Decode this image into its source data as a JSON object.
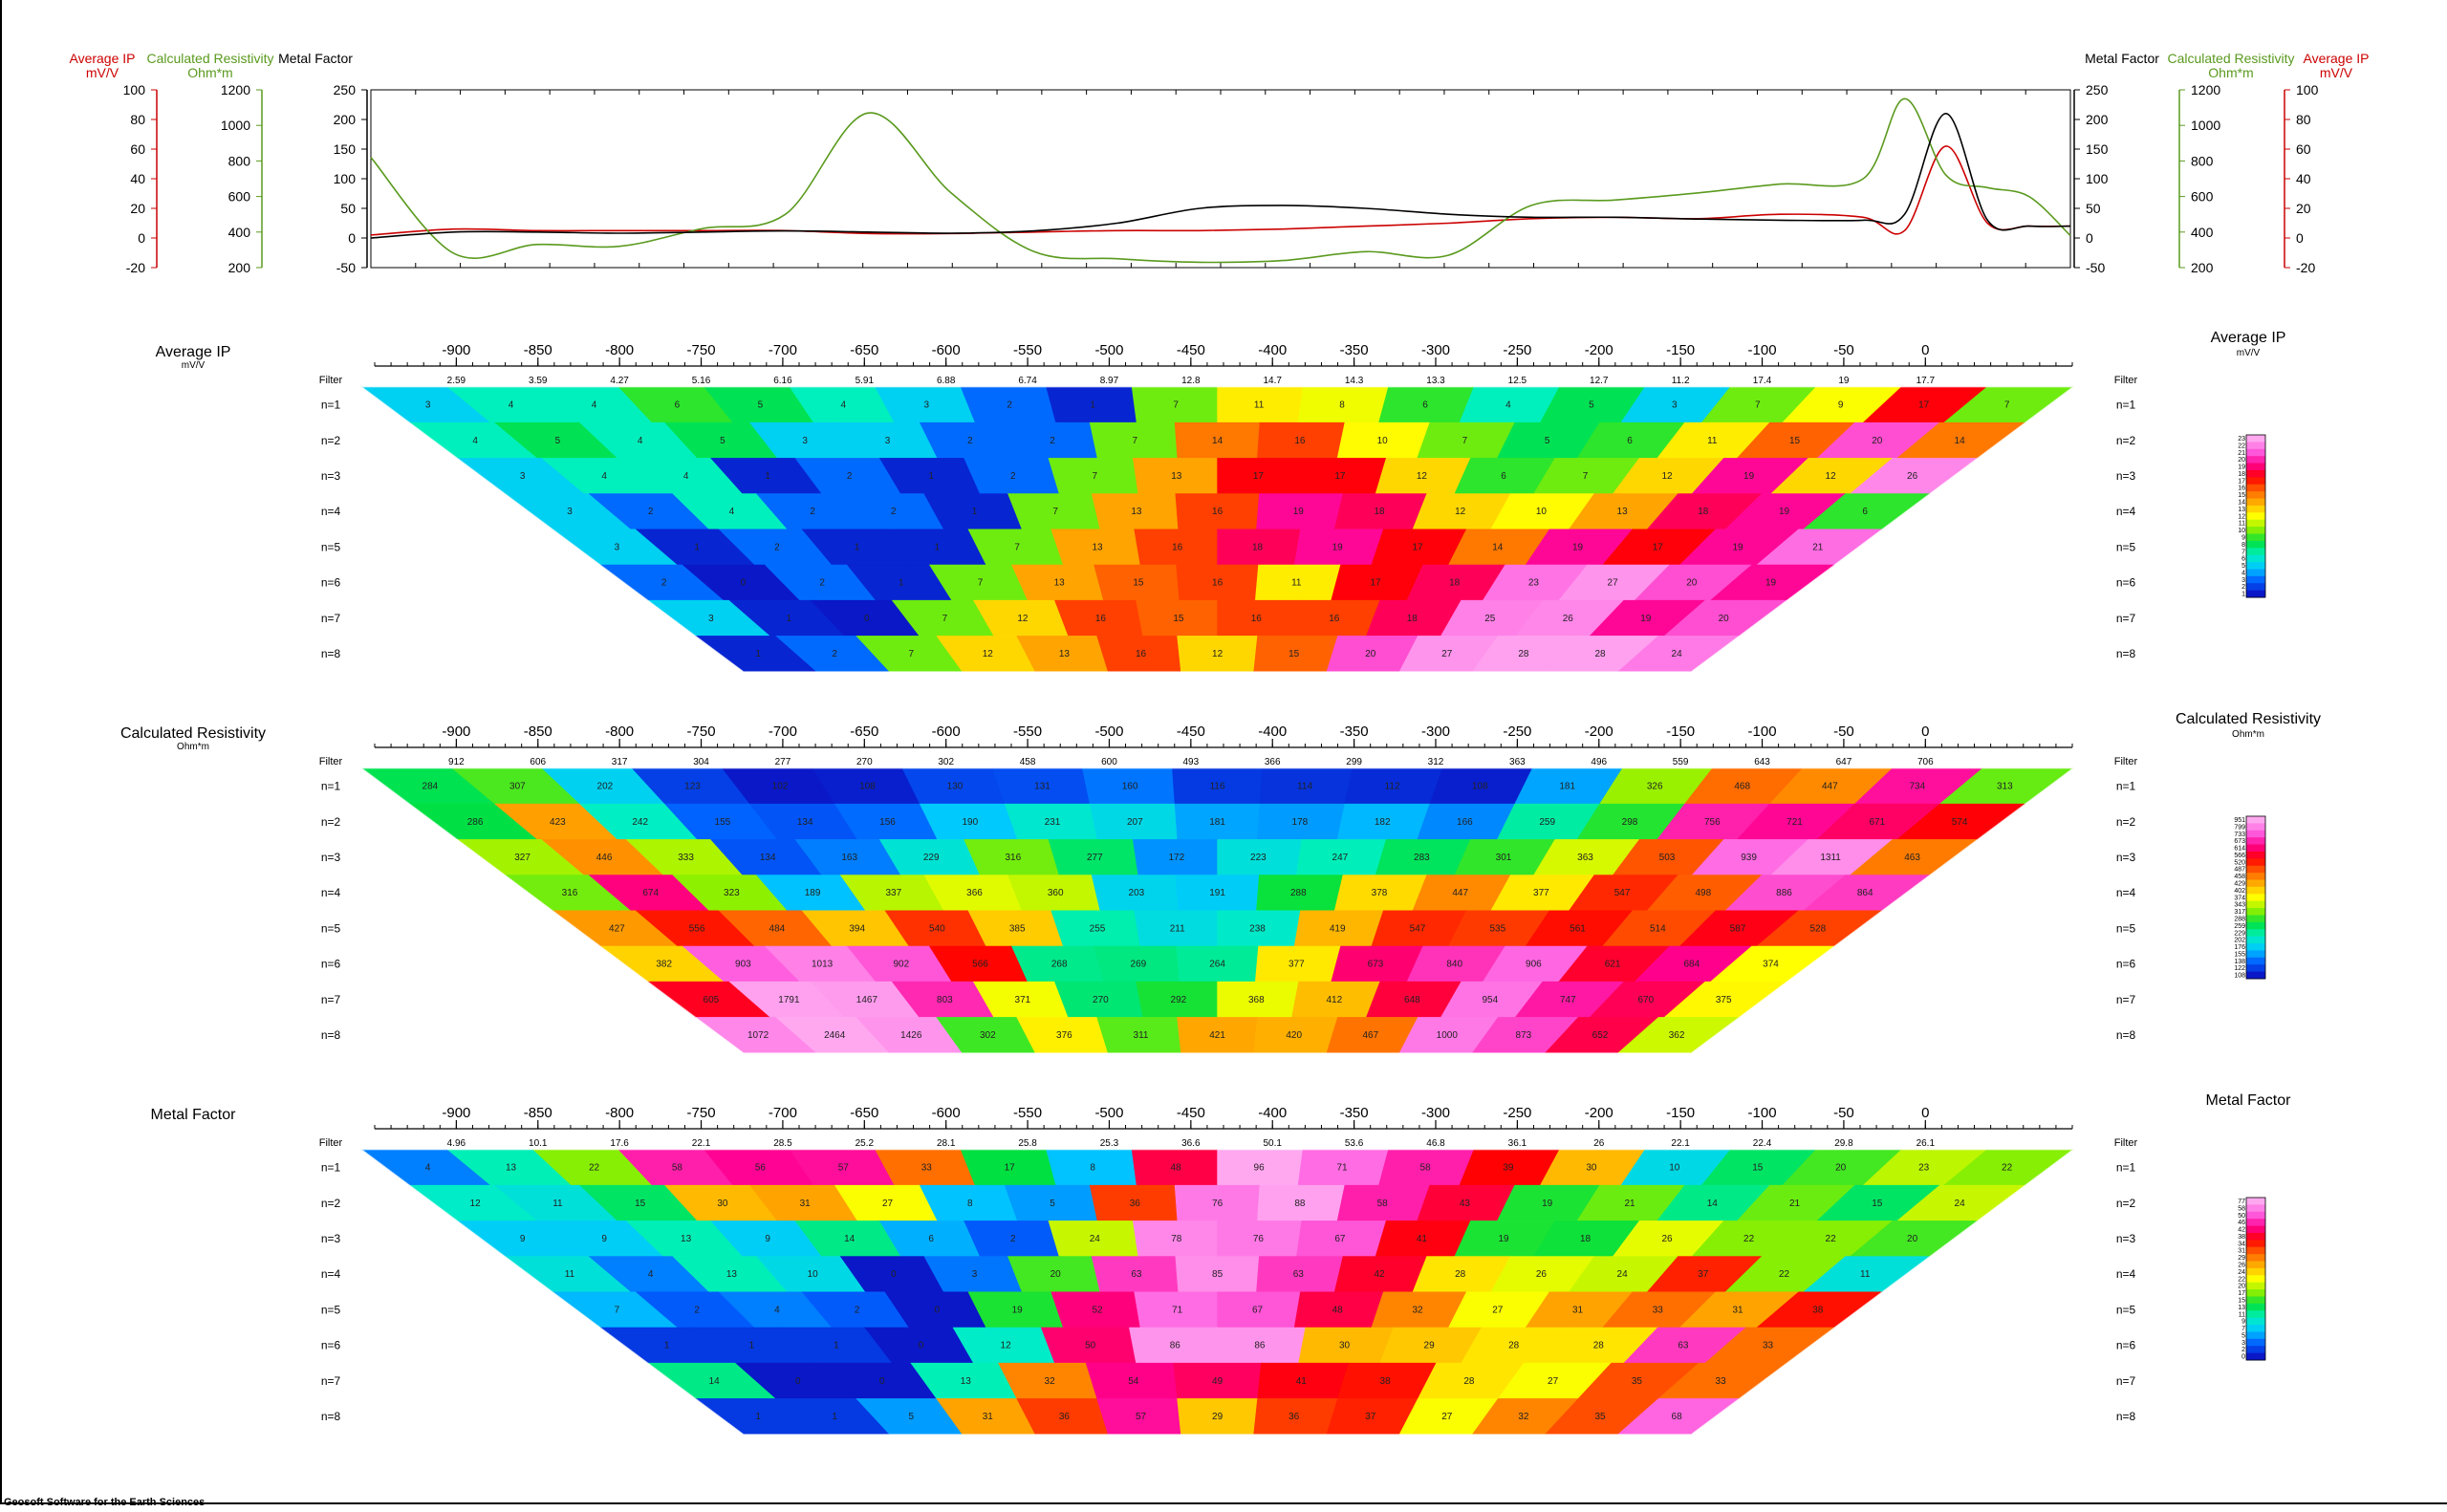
{
  "footer": "Geosoft Software for the Earth Sciences",
  "filter_label": "Filter",
  "levels": [
    "n=1",
    "n=2",
    "n=3",
    "n=4",
    "n=5",
    "n=6",
    "n=7",
    "n=8"
  ],
  "colors": {
    "ip": "#cc0000",
    "resistivity": "#5a9a1e",
    "metal": "#000000",
    "ramp": [
      "#0a18c8",
      "#0060ff",
      "#00c8ff",
      "#00f0c0",
      "#00e040",
      "#90f000",
      "#ffff00",
      "#ffb000",
      "#ff6000",
      "#ff0000",
      "#ff0090",
      "#ff60e0",
      "#ffa8f0"
    ]
  },
  "profile_chart": {
    "left_axes": [
      {
        "title": "Average IP",
        "unit": "mV/V",
        "ticks": [
          "100",
          "80",
          "60",
          "40",
          "20",
          "0",
          "-20"
        ]
      },
      {
        "title": "Calculated Resistivity",
        "unit": "Ohm*m",
        "ticks": [
          "1200",
          "1000",
          "800",
          "600",
          "400",
          "200"
        ]
      },
      {
        "title": "Metal Factor",
        "unit": "",
        "ticks": [
          "250",
          "200",
          "150",
          "100",
          "50",
          "0",
          "-50"
        ]
      }
    ],
    "right_axes": [
      {
        "title": "Metal Factor",
        "unit": "",
        "ticks": [
          "250",
          "200",
          "150",
          "100",
          "50",
          "0",
          "-50"
        ]
      },
      {
        "title": "Calculated Resistivity",
        "unit": "Ohm*m",
        "ticks": [
          "1200",
          "1000",
          "800",
          "600",
          "400",
          "200"
        ]
      },
      {
        "title": "Average IP",
        "unit": "mV/V",
        "ticks": [
          "100",
          "80",
          "60",
          "40",
          "20",
          "0",
          "-20"
        ]
      }
    ]
  },
  "chart_data": [
    {
      "type": "line",
      "x": [
        -1000,
        -950,
        -900,
        -850,
        -800,
        -750,
        -700,
        -650,
        -600,
        -550,
        -500,
        -450,
        -400,
        -350,
        -300,
        -250,
        -200,
        -150,
        -100,
        -75,
        -50,
        -25,
        0,
        25
      ],
      "xlim": [
        -1000,
        25
      ],
      "series": [
        {
          "name": "Average IP",
          "unit": "mV/V",
          "ylim": [
            -20,
            100
          ],
          "values": [
            2,
            6,
            5,
            5,
            5,
            5,
            3,
            3,
            4,
            5,
            5,
            6,
            8,
            10,
            13,
            14,
            13,
            16,
            14,
            5,
            62,
            10,
            8,
            8
          ]
        },
        {
          "name": "Calculated Resistivity",
          "unit": "Ohm*m",
          "ylim": [
            200,
            1200
          ],
          "values": [
            820,
            280,
            330,
            320,
            420,
            500,
            1070,
            620,
            290,
            250,
            230,
            240,
            290,
            270,
            550,
            580,
            620,
            670,
            700,
            1150,
            720,
            650,
            600,
            380
          ]
        },
        {
          "name": "Metal Factor",
          "ylim": [
            -50,
            250
          ],
          "values": [
            0,
            10,
            10,
            8,
            10,
            12,
            10,
            8,
            12,
            25,
            50,
            55,
            50,
            40,
            35,
            35,
            32,
            30,
            30,
            40,
            210,
            30,
            20,
            20
          ]
        }
      ]
    },
    {
      "type": "heatmap",
      "title": "Average IP",
      "unit": "mV/V",
      "x_ticks": [
        "-900",
        "-850",
        "-800",
        "-750",
        "-700",
        "-650",
        "-600",
        "-550",
        "-500",
        "-450",
        "-400",
        "-350",
        "-300",
        "-250",
        "-200",
        "-150",
        "-100",
        "-50",
        "0"
      ],
      "filter": [
        "2.59",
        "3.59",
        "4.27",
        "5.16",
        "6.16",
        "5.91",
        "6.88",
        "6.74",
        "8.97",
        "12.8",
        "14.7",
        "14.3",
        "13.3",
        "12.5",
        "12.7",
        "11.2",
        "17.4",
        "19",
        "17.7"
      ],
      "legend_ticks": [
        "23",
        "22",
        "21",
        "20",
        "19",
        "18",
        "17",
        "16",
        "15",
        "14",
        "13",
        "12",
        "11",
        "10",
        "9",
        "8",
        "7",
        "6",
        "5",
        "4",
        "3",
        "2",
        "1"
      ],
      "rows": [
        [
          "3",
          "4",
          "4",
          "6",
          "5",
          "4",
          "3",
          "2",
          "1",
          "7",
          "11",
          "8",
          "6",
          "4",
          "5",
          "3",
          "7",
          "9",
          "17",
          "7"
        ],
        [
          "4",
          "5",
          "4",
          "5",
          "3",
          "3",
          "2",
          "2",
          "7",
          "14",
          "16",
          "10",
          "7",
          "5",
          "6",
          "11",
          "15",
          "20",
          "14"
        ],
        [
          "3",
          "4",
          "4",
          "1",
          "2",
          "1",
          "2",
          "7",
          "13",
          "17",
          "17",
          "12",
          "6",
          "7",
          "12",
          "19",
          "12",
          "26"
        ],
        [
          "3",
          "2",
          "4",
          "2",
          "2",
          "1",
          "7",
          "13",
          "16",
          "19",
          "18",
          "12",
          "10",
          "13",
          "18",
          "19",
          "6"
        ],
        [
          "3",
          "1",
          "2",
          "1",
          "1",
          "7",
          "13",
          "16",
          "18",
          "19",
          "17",
          "14",
          "19",
          "17",
          "19",
          "21"
        ],
        [
          "2",
          "0",
          "2",
          "1",
          "7",
          "13",
          "15",
          "16",
          "11",
          "17",
          "18",
          "23",
          "27",
          "20",
          "19"
        ],
        [
          "3",
          "1",
          "0",
          "7",
          "12",
          "16",
          "15",
          "16",
          "16",
          "18",
          "25",
          "26",
          "19",
          "20"
        ],
        [
          "1",
          "2",
          "7",
          "12",
          "13",
          "16",
          "12",
          "15",
          "20",
          "27",
          "28",
          "28",
          "24"
        ]
      ]
    },
    {
      "type": "heatmap",
      "title": "Calculated Resistivity",
      "unit": "Ohm*m",
      "x_ticks": [
        "-900",
        "-850",
        "-800",
        "-750",
        "-700",
        "-650",
        "-600",
        "-550",
        "-500",
        "-450",
        "-400",
        "-350",
        "-300",
        "-250",
        "-200",
        "-150",
        "-100",
        "-50",
        "0"
      ],
      "filter": [
        "912",
        "606",
        "317",
        "304",
        "277",
        "270",
        "302",
        "458",
        "600",
        "493",
        "366",
        "299",
        "312",
        "363",
        "496",
        "559",
        "643",
        "647",
        "706"
      ],
      "legend_ticks": [
        "951",
        "799",
        "733",
        "673",
        "614",
        "566",
        "520",
        "487",
        "458",
        "429",
        "402",
        "374",
        "343",
        "317",
        "288",
        "259",
        "229",
        "202",
        "176",
        "155",
        "138",
        "122",
        "108"
      ],
      "rows": [
        [
          "284",
          "307",
          "202",
          "123",
          "102",
          "108",
          "130",
          "131",
          "160",
          "116",
          "114",
          "112",
          "108",
          "181",
          "326",
          "468",
          "447",
          "734",
          "313"
        ],
        [
          "286",
          "423",
          "242",
          "155",
          "134",
          "156",
          "190",
          "231",
          "207",
          "181",
          "178",
          "182",
          "166",
          "259",
          "298",
          "756",
          "721",
          "671",
          "574"
        ],
        [
          "327",
          "446",
          "333",
          "134",
          "163",
          "229",
          "316",
          "277",
          "172",
          "223",
          "247",
          "283",
          "301",
          "363",
          "503",
          "939",
          "1311",
          "463"
        ],
        [
          "316",
          "674",
          "323",
          "189",
          "337",
          "366",
          "360",
          "203",
          "191",
          "288",
          "378",
          "447",
          "377",
          "547",
          "498",
          "886",
          "864"
        ],
        [
          "427",
          "556",
          "484",
          "394",
          "540",
          "385",
          "255",
          "211",
          "238",
          "419",
          "547",
          "535",
          "561",
          "514",
          "587",
          "528"
        ],
        [
          "382",
          "903",
          "1013",
          "902",
          "566",
          "268",
          "269",
          "264",
          "377",
          "673",
          "840",
          "906",
          "621",
          "684",
          "374"
        ],
        [
          "605",
          "1791",
          "1467",
          "803",
          "371",
          "270",
          "292",
          "368",
          "412",
          "648",
          "954",
          "747",
          "670",
          "375"
        ],
        [
          "1072",
          "2464",
          "1426",
          "302",
          "376",
          "311",
          "421",
          "420",
          "467",
          "1000",
          "873",
          "652",
          "362"
        ]
      ]
    },
    {
      "type": "heatmap",
      "title": "Metal Factor",
      "unit": "",
      "x_ticks": [
        "-900",
        "-850",
        "-800",
        "-750",
        "-700",
        "-650",
        "-600",
        "-550",
        "-500",
        "-450",
        "-400",
        "-350",
        "-300",
        "-250",
        "-200",
        "-150",
        "-100",
        "-50",
        "0"
      ],
      "filter": [
        "4.96",
        "10.1",
        "17.6",
        "22.1",
        "28.5",
        "25.2",
        "28.1",
        "25.8",
        "25.3",
        "36.6",
        "50.1",
        "53.6",
        "46.8",
        "36.1",
        "26",
        "22.1",
        "22.4",
        "29.8",
        "26.1"
      ],
      "legend_ticks": [
        "77",
        "58",
        "50",
        "46",
        "42",
        "38",
        "34",
        "31",
        "29",
        "26",
        "24",
        "22",
        "20",
        "17",
        "15",
        "13",
        "11",
        "9",
        "7",
        "5",
        "3",
        "2",
        "0"
      ],
      "rows": [
        [
          "4",
          "13",
          "22",
          "58",
          "56",
          "57",
          "33",
          "17",
          "8",
          "48",
          "96",
          "71",
          "58",
          "39",
          "30",
          "10",
          "15",
          "20",
          "23",
          "22"
        ],
        [
          "12",
          "11",
          "15",
          "30",
          "31",
          "27",
          "8",
          "5",
          "36",
          "76",
          "88",
          "58",
          "43",
          "19",
          "21",
          "14",
          "21",
          "15",
          "24"
        ],
        [
          "9",
          "9",
          "13",
          "9",
          "14",
          "6",
          "2",
          "24",
          "78",
          "76",
          "67",
          "41",
          "19",
          "18",
          "26",
          "22",
          "22",
          "20"
        ],
        [
          "11",
          "4",
          "13",
          "10",
          "0",
          "3",
          "20",
          "63",
          "85",
          "63",
          "42",
          "28",
          "26",
          "24",
          "37",
          "22",
          "11"
        ],
        [
          "7",
          "2",
          "4",
          "2",
          "0",
          "19",
          "52",
          "71",
          "67",
          "48",
          "32",
          "27",
          "31",
          "33",
          "31",
          "38"
        ],
        [
          "1",
          "1",
          "1",
          "0",
          "12",
          "50",
          "86",
          "86",
          "30",
          "29",
          "28",
          "28",
          "63",
          "33"
        ],
        [
          "14",
          "0",
          "0",
          "13",
          "32",
          "54",
          "49",
          "41",
          "38",
          "28",
          "27",
          "35",
          "33"
        ],
        [
          "1",
          "1",
          "5",
          "31",
          "36",
          "57",
          "29",
          "36",
          "37",
          "27",
          "32",
          "35",
          "68"
        ]
      ]
    }
  ]
}
